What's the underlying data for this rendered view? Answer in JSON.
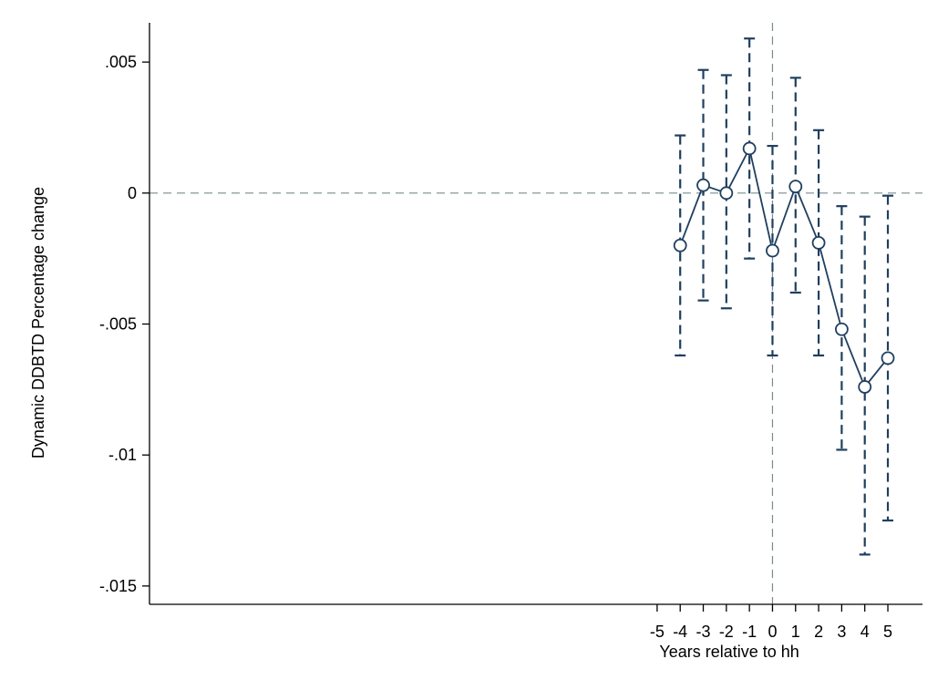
{
  "chart_data": {
    "type": "scatter",
    "title": "",
    "xlabel": "Years relative to hh",
    "ylabel": "Dynamic DDBTD Percentage change",
    "x_ticks": [
      -5,
      -4,
      -3,
      -2,
      -1,
      0,
      1,
      2,
      3,
      4,
      5
    ],
    "x_tick_labels": [
      "-5",
      "-4",
      "-3",
      "-2",
      "-1",
      "0",
      "1",
      "2",
      "3",
      "4",
      "5"
    ],
    "xlim": [
      -27,
      6.5
    ],
    "y_ticks": [
      0.005,
      0,
      -0.005,
      -0.01,
      -0.015
    ],
    "y_tick_labels": [
      ".005",
      "0",
      "-.005",
      "-.01",
      "-.015"
    ],
    "ylim": [
      -0.0157,
      0.0065
    ],
    "reference_lines": {
      "horizontal_y": 0,
      "vertical_x": 0
    },
    "series": [
      {
        "name": "Point estimate",
        "x": [
          -4,
          -3,
          -2,
          -1,
          0,
          1,
          2,
          3,
          4,
          5
        ],
        "values": [
          -0.002,
          0.0003,
          0.0,
          0.0017,
          -0.0022,
          0.00025,
          -0.0019,
          -0.0052,
          -0.0074,
          -0.0063
        ],
        "ci_lower": [
          -0.0062,
          -0.0041,
          -0.0044,
          -0.0025,
          -0.0062,
          -0.0038,
          -0.0062,
          -0.0098,
          -0.0138,
          -0.0125
        ],
        "ci_upper": [
          0.0022,
          0.0047,
          0.0045,
          0.0059,
          0.0018,
          0.0044,
          0.0024,
          -0.0005,
          -0.0009,
          -0.0001
        ]
      }
    ],
    "colors": {
      "series": "#1f3f5f",
      "reference": "#7a8a8f",
      "axis": "#000000"
    }
  }
}
